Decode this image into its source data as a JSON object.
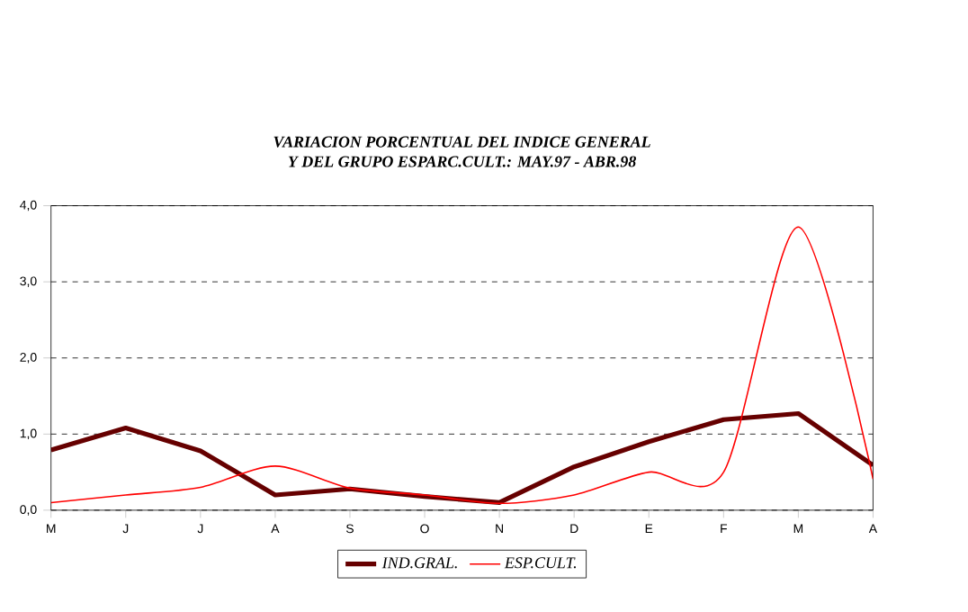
{
  "chart_data": {
    "type": "line",
    "title": "VARIACION PORCENTUAL DEL INDICE GENERAL\nY DEL GRUPO ESPARC.CULT.: MAY.97 - ABR.98",
    "categories": [
      "M",
      "J",
      "J",
      "A",
      "S",
      "O",
      "N",
      "D",
      "E",
      "F",
      "M",
      "A"
    ],
    "series": [
      {
        "name": "IND.GRAL.",
        "color": "#660000",
        "values": [
          0.79,
          1.08,
          0.78,
          0.2,
          0.28,
          0.18,
          0.1,
          0.57,
          0.9,
          1.19,
          1.27,
          0.59
        ]
      },
      {
        "name": "ESP.CULT.",
        "color": "#ff0000",
        "values": [
          0.1,
          0.2,
          0.3,
          0.58,
          0.29,
          0.2,
          0.09,
          0.2,
          0.5,
          0.5,
          3.72,
          0.41
        ]
      }
    ],
    "ylim": [
      0,
      4
    ],
    "yticks": [
      {
        "value": 0,
        "label": "0,0"
      },
      {
        "value": 1,
        "label": "1,0"
      },
      {
        "value": 2,
        "label": "2,0"
      },
      {
        "value": 3,
        "label": "3,0"
      },
      {
        "value": 4,
        "label": "4,0"
      }
    ],
    "grid": "y",
    "legend": "bottom",
    "marker": "none"
  }
}
